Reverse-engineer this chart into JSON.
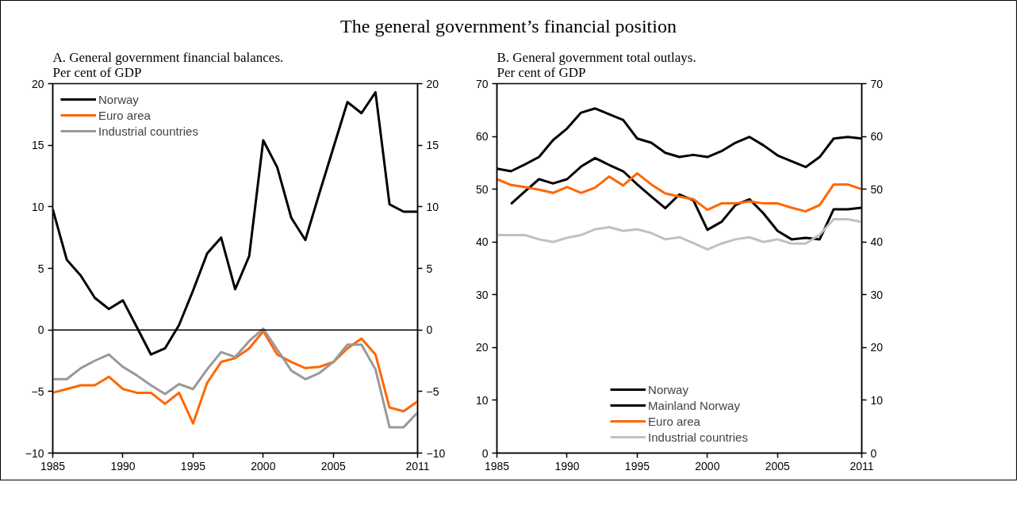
{
  "chart_data": [
    {
      "type": "line",
      "title": "A. General government financial balances.\nPer cent of GDP",
      "x": [
        1985,
        1986,
        1987,
        1988,
        1989,
        1990,
        1991,
        1992,
        1993,
        1994,
        1995,
        1996,
        1997,
        1998,
        1999,
        2000,
        2001,
        2002,
        2003,
        2004,
        2005,
        2006,
        2007,
        2008,
        2009,
        2010,
        2011
      ],
      "series": [
        {
          "name": "Norway",
          "color": "#000000",
          "values": [
            9.8,
            5.7,
            4.4,
            2.6,
            1.7,
            2.4,
            0.2,
            -2.0,
            -1.5,
            0.4,
            3.2,
            6.2,
            7.5,
            3.3,
            6.0,
            15.4,
            13.2,
            9.1,
            7.3,
            11.1,
            14.8,
            18.5,
            17.6,
            19.3,
            10.2,
            9.6,
            9.6
          ]
        },
        {
          "name": "Euro area",
          "color": "#ff6600",
          "values": [
            -5.1,
            -4.8,
            -4.5,
            -4.5,
            -3.8,
            -4.8,
            -5.1,
            -5.1,
            -6.0,
            -5.1,
            -7.6,
            -4.3,
            -2.6,
            -2.3,
            -1.5,
            -0.1,
            -2.0,
            -2.6,
            -3.1,
            -3.0,
            -2.6,
            -1.5,
            -0.7,
            -2.0,
            -6.3,
            -6.6,
            -5.8
          ]
        },
        {
          "name": "Industrial countries",
          "color": "#999999",
          "values": [
            -4.0,
            -4.0,
            -3.1,
            -2.5,
            -2.0,
            -3.0,
            -3.7,
            -4.5,
            -5.2,
            -4.4,
            -4.8,
            -3.2,
            -1.8,
            -2.2,
            -0.9,
            0.1,
            -1.6,
            -3.3,
            -4.0,
            -3.5,
            -2.6,
            -1.2,
            -1.2,
            -3.2,
            -7.9,
            -7.9,
            -6.7
          ]
        }
      ],
      "xlim": [
        1985,
        2011
      ],
      "xticks": [
        1985,
        1990,
        1995,
        2000,
        2005,
        {
          "value": 2011,
          "label": "2011"
        }
      ],
      "ylim": [
        -10,
        20
      ],
      "yticks": [
        -10,
        -5,
        0,
        5,
        10,
        15,
        20
      ],
      "y2lim": [
        -10,
        20
      ],
      "y2ticks": [
        -10,
        -5,
        0,
        5,
        10,
        15,
        20
      ],
      "ref_lines": [
        {
          "axis": "y",
          "value": 0,
          "color": "#000000"
        }
      ],
      "legend": "top left",
      "grid": false
    },
    {
      "type": "line",
      "title": "B. General government total outlays.\nPer cent of GDP",
      "x": [
        1985,
        1986,
        1987,
        1988,
        1989,
        1990,
        1991,
        1992,
        1993,
        1994,
        1995,
        1996,
        1997,
        1998,
        1999,
        2000,
        2001,
        2002,
        2003,
        2004,
        2005,
        2006,
        2007,
        2008,
        2009,
        2010,
        2011
      ],
      "series": [
        {
          "name": "Norway",
          "color": "#000000",
          "values": [
            null,
            47.2,
            49.6,
            51.9,
            51.1,
            51.9,
            54.3,
            55.9,
            54.6,
            53.4,
            50.9,
            48.6,
            46.4,
            49.0,
            47.9,
            42.3,
            43.8,
            47.0,
            48.1,
            45.4,
            42.1,
            40.5,
            40.8,
            40.5,
            46.2,
            46.2,
            46.5
          ]
        },
        {
          "name": "Mainland Norway",
          "color": "#000000",
          "values": [
            53.9,
            53.4,
            54.7,
            56.1,
            59.3,
            61.5,
            64.5,
            65.3,
            64.2,
            63.1,
            59.6,
            58.8,
            56.9,
            56.1,
            56.5,
            56.1,
            57.2,
            58.8,
            59.9,
            58.3,
            56.4,
            55.3,
            54.2,
            56.1,
            59.6,
            59.9,
            59.6
          ]
        },
        {
          "name": "Euro area",
          "color": "#ff6600",
          "values": [
            51.9,
            50.8,
            50.4,
            49.9,
            49.3,
            50.4,
            49.3,
            50.3,
            52.4,
            50.7,
            53.0,
            50.9,
            49.2,
            48.6,
            48.1,
            46.1,
            47.3,
            47.3,
            47.7,
            47.3,
            47.3,
            46.5,
            45.8,
            47.0,
            50.9,
            50.9,
            50.0
          ]
        },
        {
          "name": "Industrial countries",
          "color": "#c0c0c0",
          "values": [
            41.3,
            41.3,
            41.3,
            40.5,
            40.0,
            40.8,
            41.3,
            42.4,
            42.8,
            42.1,
            42.4,
            41.7,
            40.5,
            40.9,
            39.8,
            38.6,
            39.7,
            40.5,
            40.9,
            40.0,
            40.5,
            39.7,
            39.7,
            41.4,
            44.3,
            44.3,
            43.8
          ]
        }
      ],
      "xlim": [
        1985,
        2011
      ],
      "xticks": [
        1985,
        1990,
        1995,
        2000,
        2005,
        {
          "value": 2011,
          "label": "2011"
        }
      ],
      "ylim": [
        0,
        70
      ],
      "yticks": [
        0,
        10,
        20,
        30,
        40,
        50,
        60,
        70
      ],
      "y2lim": [
        0,
        70
      ],
      "y2ticks": [
        0,
        10,
        20,
        30,
        40,
        50,
        60,
        70
      ],
      "legend": "bottom",
      "grid": false
    },
    {
      "type": "other",
      "title": "The general government’s financial position"
    }
  ]
}
